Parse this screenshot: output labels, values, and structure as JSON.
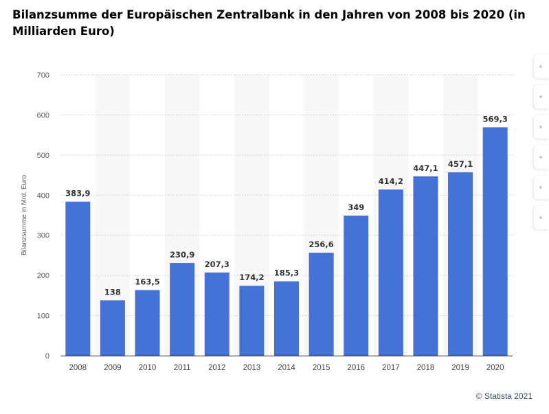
{
  "chart_data": {
    "type": "bar",
    "title": "Bilanzsumme der Europäischen Zentralbank in den Jahren von 2008 bis 2020 (in Milliarden Euro)",
    "xlabel": "",
    "ylabel": "Bilanzsumme in Mrd. Euro",
    "ylim": [
      0,
      700
    ],
    "yticks": [
      0,
      100,
      200,
      300,
      400,
      500,
      600,
      700
    ],
    "categories": [
      "2008",
      "2009",
      "2010",
      "2011",
      "2012",
      "2013",
      "2014",
      "2015",
      "2016",
      "2017",
      "2018",
      "2019",
      "2020"
    ],
    "values": [
      383.9,
      138,
      163.5,
      230.9,
      207.3,
      174.2,
      185.3,
      256.6,
      349,
      414.2,
      447.1,
      457.1,
      569.3
    ],
    "value_labels": [
      "383,9",
      "138",
      "163,5",
      "230,9",
      "207,3",
      "174,2",
      "185,3",
      "256,6",
      "349",
      "414,2",
      "447,1",
      "457,1",
      "569,3"
    ],
    "grid": true,
    "legend": "none",
    "colors": {
      "bar": "#4472d6",
      "band": "#f7f7f7",
      "grid": "#d6d6d6"
    }
  },
  "footer": {
    "copyright": "© Statista 2021"
  },
  "side_tabs": [
    "notification-icon",
    "favorite-icon",
    "settings-icon",
    "download-icon",
    "share-icon",
    "print-icon"
  ]
}
